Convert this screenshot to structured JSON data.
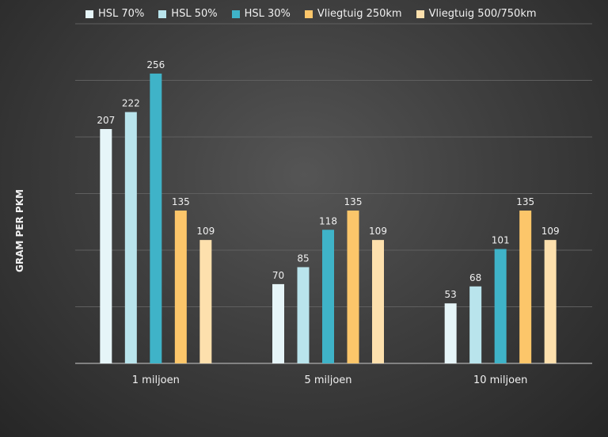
{
  "chart_data": {
    "type": "bar",
    "title": "",
    "xlabel": "",
    "ylabel": "GRAM PER PKM",
    "ylim": [
      0,
      300
    ],
    "grid": true,
    "legend_position": "top",
    "categories": [
      "1 miljoen",
      "5 miljoen",
      "10 miljoen"
    ],
    "series": [
      {
        "name": "HSL 70%",
        "color": "#e6f5f8",
        "values": [
          207,
          70,
          53
        ]
      },
      {
        "name": "HSL 50%",
        "color": "#b9e4ec",
        "values": [
          222,
          85,
          68
        ]
      },
      {
        "name": "HSL 30%",
        "color": "#3fb3c8",
        "values": [
          256,
          118,
          101
        ]
      },
      {
        "name": "Vliegtuig 250km",
        "color": "#fcc66a",
        "values": [
          135,
          135,
          135
        ]
      },
      {
        "name": "Vliegtuig 500/750km",
        "color": "#fde0ad",
        "values": [
          109,
          109,
          109
        ]
      }
    ]
  }
}
